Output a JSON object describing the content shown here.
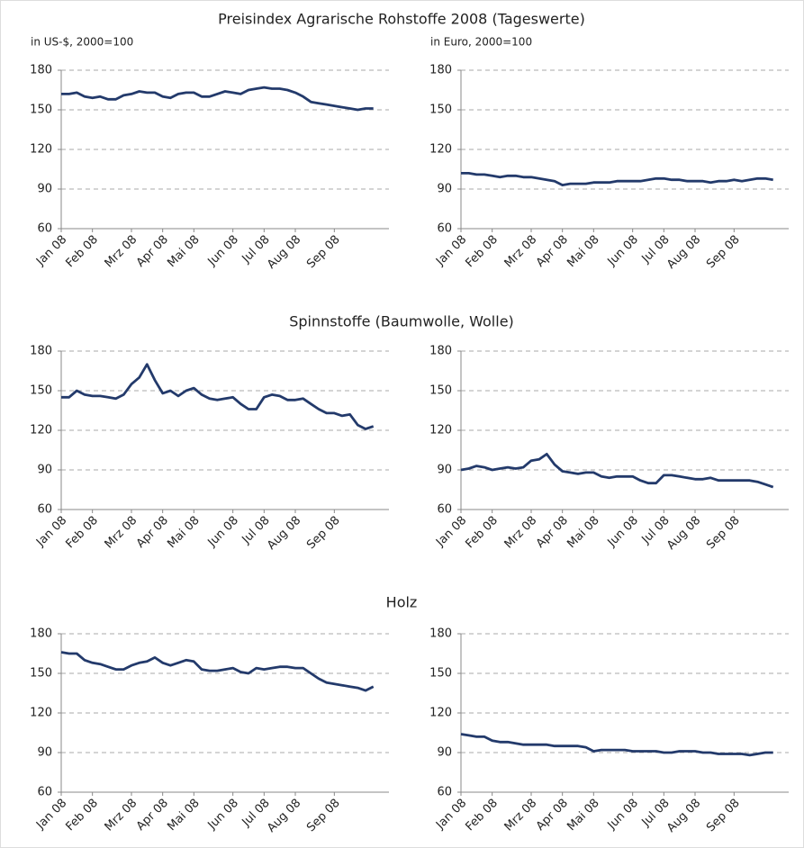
{
  "title": "Preisindex Agrarische Rohstoffe 2008 (Tageswerte)",
  "left_unit": "in US-$, 2000=100",
  "right_unit": "in Euro, 2000=100",
  "section_titles": [
    "Spinnstoffe (Baumwolle, Wolle)",
    "Holz"
  ],
  "chart_data": [
    {
      "type": "line",
      "color": "#233a6b",
      "ylim": [
        60,
        180
      ],
      "yticks": [
        60,
        90,
        120,
        150,
        180
      ],
      "grid": true,
      "categories": [
        "Jan 08",
        null,
        null,
        null,
        "Feb 08",
        null,
        null,
        null,
        null,
        "Mrz 08",
        null,
        null,
        null,
        "Apr 08",
        null,
        null,
        null,
        "Mai 08",
        null,
        null,
        null,
        null,
        "Jun 08",
        null,
        null,
        null,
        "Jul 08",
        null,
        null,
        null,
        "Aug 08",
        null,
        null,
        null,
        null,
        "Sep 08",
        null,
        null,
        null,
        null,
        null
      ],
      "values": [
        162,
        162,
        163,
        160,
        159,
        160,
        158,
        158,
        161,
        162,
        164,
        163,
        163,
        160,
        159,
        162,
        163,
        163,
        160,
        160,
        162,
        164,
        163,
        162,
        165,
        166,
        167,
        166,
        166,
        165,
        163,
        160,
        156,
        155,
        154,
        153,
        152,
        151,
        150,
        151,
        151
      ]
    },
    {
      "type": "line",
      "color": "#233a6b",
      "ylim": [
        60,
        180
      ],
      "yticks": [
        60,
        90,
        120,
        150,
        180
      ],
      "grid": true,
      "categories": [
        "Jan 08",
        null,
        null,
        null,
        "Feb 08",
        null,
        null,
        null,
        null,
        "Mrz 08",
        null,
        null,
        null,
        "Apr 08",
        null,
        null,
        null,
        "Mai 08",
        null,
        null,
        null,
        null,
        "Jun 08",
        null,
        null,
        null,
        "Jul 08",
        null,
        null,
        null,
        "Aug 08",
        null,
        null,
        null,
        null,
        "Sep 08",
        null,
        null,
        null,
        null,
        null
      ],
      "values": [
        102,
        102,
        101,
        101,
        100,
        99,
        100,
        100,
        99,
        99,
        98,
        97,
        96,
        93,
        94,
        94,
        94,
        95,
        95,
        95,
        96,
        96,
        96,
        96,
        97,
        98,
        98,
        97,
        97,
        96,
        96,
        96,
        95,
        96,
        96,
        97,
        96,
        97,
        98,
        98,
        97
      ]
    },
    {
      "type": "line",
      "color": "#233a6b",
      "ylim": [
        60,
        180
      ],
      "yticks": [
        60,
        90,
        120,
        150,
        180
      ],
      "grid": true,
      "categories": [
        "Jan 08",
        null,
        null,
        null,
        "Feb 08",
        null,
        null,
        null,
        null,
        "Mrz 08",
        null,
        null,
        null,
        "Apr 08",
        null,
        null,
        null,
        "Mai 08",
        null,
        null,
        null,
        null,
        "Jun 08",
        null,
        null,
        null,
        "Jul 08",
        null,
        null,
        null,
        "Aug 08",
        null,
        null,
        null,
        null,
        "Sep 08",
        null,
        null,
        null,
        null,
        null
      ],
      "values": [
        145,
        145,
        150,
        147,
        146,
        146,
        145,
        144,
        147,
        155,
        160,
        170,
        158,
        148,
        150,
        146,
        150,
        152,
        147,
        144,
        143,
        144,
        145,
        140,
        136,
        136,
        145,
        147,
        146,
        143,
        143,
        144,
        140,
        136,
        133,
        133,
        131,
        132,
        124,
        121,
        123
      ]
    },
    {
      "type": "line",
      "color": "#233a6b",
      "ylim": [
        60,
        180
      ],
      "yticks": [
        60,
        90,
        120,
        150,
        180
      ],
      "grid": true,
      "categories": [
        "Jan 08",
        null,
        null,
        null,
        "Feb 08",
        null,
        null,
        null,
        null,
        "Mrz 08",
        null,
        null,
        null,
        "Apr 08",
        null,
        null,
        null,
        "Mai 08",
        null,
        null,
        null,
        null,
        "Jun 08",
        null,
        null,
        null,
        "Jul 08",
        null,
        null,
        null,
        "Aug 08",
        null,
        null,
        null,
        null,
        "Sep 08",
        null,
        null,
        null,
        null,
        null
      ],
      "values": [
        90,
        91,
        93,
        92,
        90,
        91,
        92,
        91,
        92,
        97,
        98,
        102,
        94,
        89,
        88,
        87,
        88,
        88,
        85,
        84,
        85,
        85,
        85,
        82,
        80,
        80,
        86,
        86,
        85,
        84,
        83,
        83,
        84,
        82,
        82,
        82,
        82,
        82,
        81,
        79,
        77
      ]
    },
    {
      "type": "line",
      "color": "#233a6b",
      "ylim": [
        60,
        180
      ],
      "yticks": [
        60,
        90,
        120,
        150,
        180
      ],
      "grid": true,
      "categories": [
        "Jan 08",
        null,
        null,
        null,
        "Feb 08",
        null,
        null,
        null,
        null,
        "Mrz 08",
        null,
        null,
        null,
        "Apr 08",
        null,
        null,
        null,
        "Mai 08",
        null,
        null,
        null,
        null,
        "Jun 08",
        null,
        null,
        null,
        "Jul 08",
        null,
        null,
        null,
        "Aug 08",
        null,
        null,
        null,
        null,
        "Sep 08",
        null,
        null,
        null,
        null,
        null
      ],
      "values": [
        166,
        165,
        165,
        160,
        158,
        157,
        155,
        153,
        153,
        156,
        158,
        159,
        162,
        158,
        156,
        158,
        160,
        159,
        153,
        152,
        152,
        153,
        154,
        151,
        150,
        154,
        153,
        154,
        155,
        155,
        154,
        154,
        150,
        146,
        143,
        142,
        141,
        140,
        139,
        137,
        140
      ]
    },
    {
      "type": "line",
      "color": "#233a6b",
      "ylim": [
        60,
        180
      ],
      "yticks": [
        60,
        90,
        120,
        150,
        180
      ],
      "grid": true,
      "categories": [
        "Jan 08",
        null,
        null,
        null,
        "Feb 08",
        null,
        null,
        null,
        null,
        "Mrz 08",
        null,
        null,
        null,
        "Apr 08",
        null,
        null,
        null,
        "Mai 08",
        null,
        null,
        null,
        null,
        "Jun 08",
        null,
        null,
        null,
        "Jul 08",
        null,
        null,
        null,
        "Aug 08",
        null,
        null,
        null,
        null,
        "Sep 08",
        null,
        null,
        null,
        null,
        null
      ],
      "values": [
        104,
        103,
        102,
        102,
        99,
        98,
        98,
        97,
        96,
        96,
        96,
        96,
        95,
        95,
        95,
        95,
        94,
        91,
        92,
        92,
        92,
        92,
        91,
        91,
        91,
        91,
        90,
        90,
        91,
        91,
        91,
        90,
        90,
        89,
        89,
        89,
        89,
        88,
        89,
        90,
        90
      ]
    }
  ]
}
